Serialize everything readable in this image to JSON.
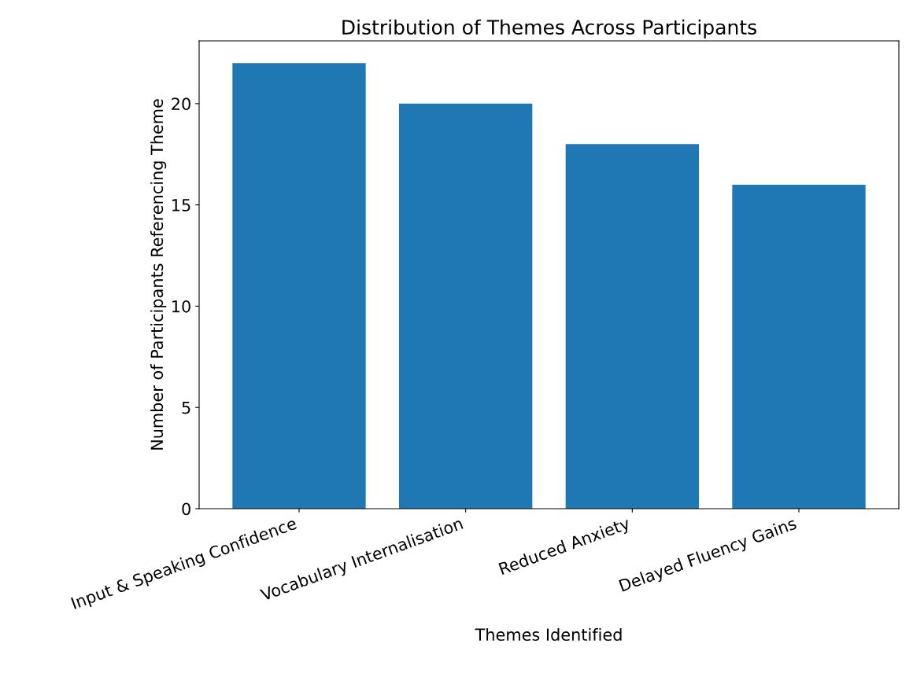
{
  "chart_data": {
    "type": "bar",
    "title": "Distribution of Themes Across Participants",
    "xlabel": "Themes Identified",
    "ylabel": "Number of Participants Referencing Theme",
    "categories": [
      "Input & Speaking Confidence",
      "Vocabulary Internalisation",
      "Reduced Anxiety",
      "Delayed Fluency Gains"
    ],
    "values": [
      22,
      20,
      18,
      16
    ],
    "color": "#1f77b4",
    "ylim": [
      0,
      23.1
    ],
    "yticks": [
      0,
      5,
      10,
      15,
      20
    ],
    "grid": false
  }
}
